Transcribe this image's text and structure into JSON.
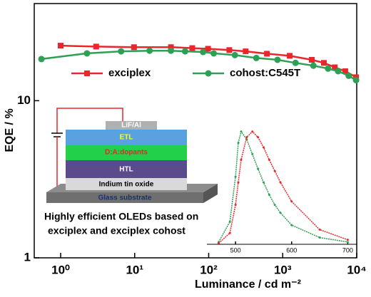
{
  "chart_data": [
    {
      "type": "line",
      "xlabel": "Luminance / cd m⁻²",
      "ylabel": "EQE / %",
      "xscale": "log",
      "yscale": "log",
      "xlim": [
        0.44,
        10000
      ],
      "ylim": [
        1,
        41.5
      ],
      "xticks": [
        {
          "value": 1,
          "label": "10⁰"
        },
        {
          "value": 10,
          "label": "10¹"
        },
        {
          "value": 100,
          "label": "10²"
        },
        {
          "value": 1000,
          "label": "10³"
        },
        {
          "value": 10000,
          "label": "10⁴"
        }
      ],
      "yticks": [
        1,
        10
      ],
      "legend": "top",
      "series": [
        {
          "name": "exciplex",
          "color": "#e8262b",
          "marker": "square",
          "x": [
            1,
            3.02,
            9.8,
            30.9,
            60,
            98,
            190,
            316,
            612,
            1243,
            2470,
            3600,
            5050,
            7000,
            9800
          ],
          "values": [
            22.4,
            22.1,
            21.9,
            21.9,
            21.6,
            21.4,
            21.0,
            20.6,
            19.9,
            19.3,
            18.2,
            17.4,
            16.3,
            15.4,
            14.1
          ]
        },
        {
          "name": "cohost:C545T",
          "color": "#2ea055",
          "marker": "circle",
          "x": [
            0.55,
            2.27,
            6.56,
            15.9,
            30.9,
            48,
            84,
            117,
            226,
            440,
            850,
            1490,
            2600,
            4100,
            5600,
            7800,
            9800
          ],
          "values": [
            18.4,
            20.0,
            20.6,
            20.8,
            20.8,
            20.6,
            20.4,
            20.0,
            19.5,
            18.7,
            18.2,
            17.4,
            16.7,
            16.0,
            15.4,
            14.4,
            13.5
          ]
        }
      ],
      "annotation": [
        "Highly efficient  OLEDs based on",
        "exciplex and exciplex cohost"
      ],
      "device_layers": [
        "LiF/Al",
        "ETL",
        "D:A:dopants",
        "HTL",
        "Indium tin oxide",
        "Glass substrate"
      ]
    },
    {
      "type": "line",
      "xlim": [
        449,
        716
      ],
      "ylim": [
        0,
        1.03
      ],
      "xticks": [
        500,
        600,
        700
      ],
      "x": [
        470,
        490,
        500,
        505,
        510,
        520,
        530,
        540,
        550,
        560,
        570,
        580,
        600,
        650,
        700
      ],
      "series": [
        {
          "color": "#2ea055",
          "values": [
            0.02,
            0.2,
            0.6,
            0.9,
            1,
            0.93,
            0.8,
            0.67,
            0.55,
            0.44,
            0.35,
            0.28,
            0.17,
            0.06,
            0.02
          ]
        },
        {
          "color": "#e8262b",
          "values": [
            0.01,
            0.1,
            0.35,
            0.55,
            0.75,
            0.95,
            1,
            0.95,
            0.86,
            0.75,
            0.65,
            0.55,
            0.38,
            0.13,
            0.04
          ]
        }
      ]
    }
  ]
}
